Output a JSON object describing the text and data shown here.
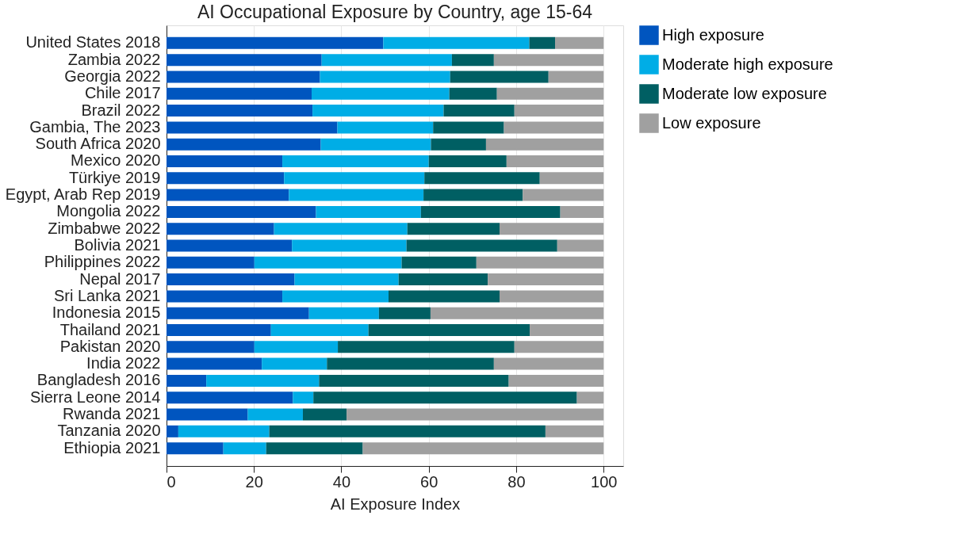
{
  "chart_data": {
    "type": "bar",
    "orientation": "horizontal",
    "stacked": true,
    "title": "AI Occupational Exposure by Country, age 15-64",
    "xlabel": "AI Exposure Index",
    "categories": [
      "United States 2018",
      "Zambia 2022",
      "Georgia 2022",
      "Chile 2017",
      "Brazil 2022",
      "Gambia, The 2023",
      "South Africa 2020",
      "Mexico 2020",
      "Türkiye 2019",
      "Egypt, Arab Rep 2019",
      "Mongolia 2022",
      "Zimbabwe 2022",
      "Bolivia 2021",
      "Philippines 2022",
      "Nepal 2017",
      "Sri Lanka 2021",
      "Indonesia 2015",
      "Thailand 2021",
      "Pakistan 2020",
      "India 2022",
      "Bangladesh 2016",
      "Sierra Leone 2014",
      "Rwanda 2021",
      "Tanzania 2020",
      "Ethiopia 2021"
    ],
    "series": [
      {
        "name": "High exposure",
        "color": "#0055bf",
        "values": [
          49.6,
          35.5,
          35.1,
          33.2,
          33.4,
          39.1,
          35.3,
          26.5,
          26.9,
          28.0,
          34.2,
          24.6,
          28.7,
          20.1,
          29.3,
          26.5,
          32.6,
          23.9,
          20.1,
          21.8,
          9.1,
          28.9,
          18.6,
          2.7,
          13.0
        ]
      },
      {
        "name": "Moderate high exposure",
        "color": "#00ade6",
        "values": [
          33.4,
          29.8,
          29.8,
          31.5,
          30.0,
          21.9,
          25.2,
          33.5,
          32.1,
          30.8,
          24.0,
          30.5,
          26.2,
          33.7,
          23.8,
          24.3,
          16.0,
          22.3,
          19.1,
          14.9,
          25.8,
          4.7,
          12.6,
          20.8,
          9.8
        ]
      },
      {
        "name": "Moderate low exposure",
        "color": "#005f63",
        "values": [
          5.9,
          9.6,
          22.5,
          10.9,
          16.2,
          16.2,
          12.6,
          17.8,
          26.4,
          22.7,
          31.9,
          21.1,
          34.5,
          17.1,
          20.4,
          25.4,
          11.8,
          36.9,
          40.4,
          38.2,
          43.4,
          60.3,
          10.0,
          63.2,
          22.1
        ]
      },
      {
        "name": "Low exposure",
        "color": "#a0a0a0",
        "values": [
          11.1,
          25.1,
          12.6,
          24.4,
          20.4,
          22.8,
          26.9,
          22.2,
          14.6,
          18.5,
          9.9,
          23.8,
          10.6,
          29.1,
          26.5,
          23.8,
          39.6,
          16.9,
          20.4,
          25.1,
          21.7,
          6.1,
          58.8,
          13.3,
          55.1
        ]
      }
    ],
    "xlim": [
      0,
      104.5
    ],
    "xticks": [
      0,
      20,
      40,
      60,
      80,
      100
    ],
    "grid": "x",
    "legend": "right"
  }
}
